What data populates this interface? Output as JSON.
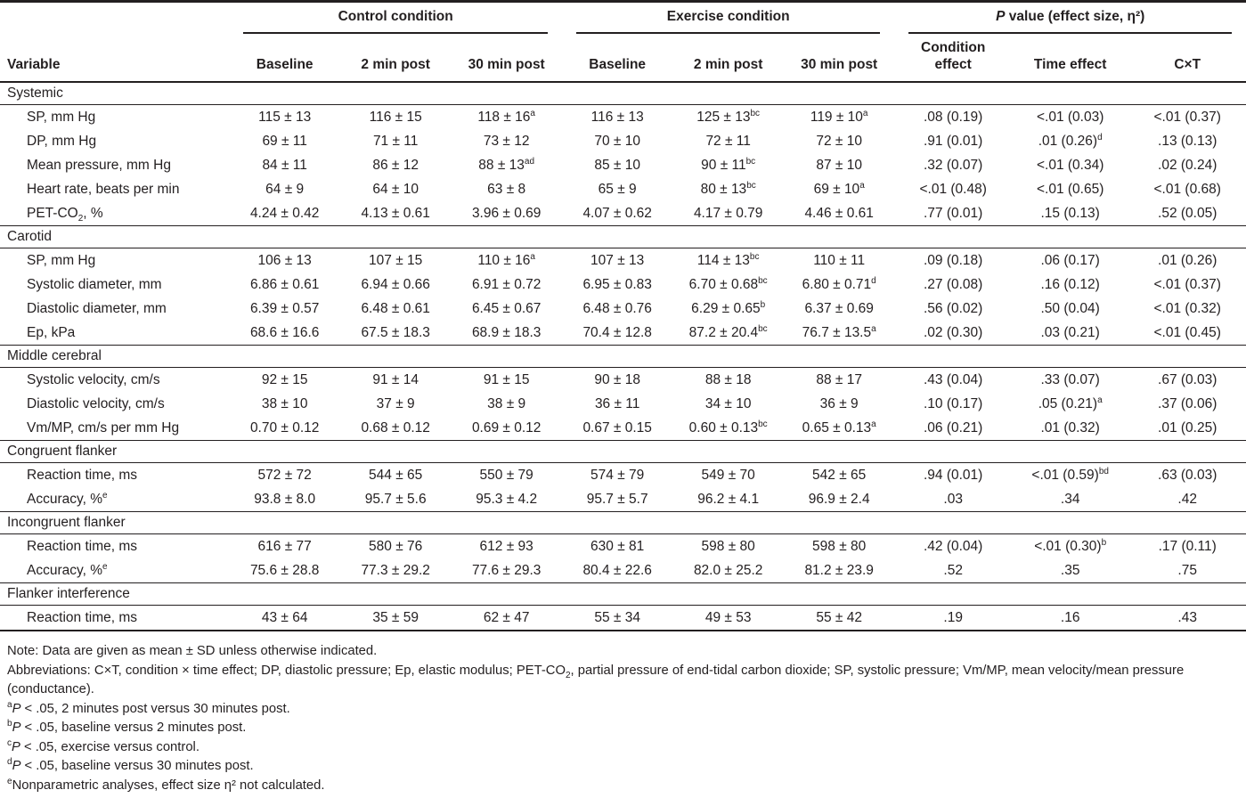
{
  "table": {
    "col_groups": [
      {
        "label": "Control condition"
      },
      {
        "label": "Exercise condition"
      },
      {
        "label": "*P* value (effect size, η²)"
      }
    ],
    "columns": [
      "Variable",
      "Baseline",
      "2 min post",
      "30 min post",
      "Baseline",
      "2 min post",
      "30 min post",
      "Condition\neffect",
      "Time effect",
      "C×T"
    ],
    "sections": [
      {
        "label": "Systemic",
        "rows": [
          {
            "label": "SP, mm Hg",
            "cells": [
              "115 ± 13",
              "116 ± 15",
              "118 ± 16^a",
              "116 ± 13",
              "125 ± 13^bc",
              "119 ± 10^a",
              ".08 (0.19)",
              "<.01 (0.03)",
              "<.01 (0.37)"
            ]
          },
          {
            "label": "DP, mm Hg",
            "cells": [
              "69 ± 11",
              "71 ± 11",
              "73 ± 12",
              "70 ± 10",
              "72 ± 11",
              "72 ± 10",
              ".91 (0.01)",
              ".01 (0.26)^d",
              ".13 (0.13)"
            ]
          },
          {
            "label": "Mean pressure, mm Hg",
            "cells": [
              "84 ± 11",
              "86 ± 12",
              "88 ± 13^ad",
              "85 ± 10",
              "90 ± 11^bc",
              "87 ± 10",
              ".32 (0.07)",
              "<.01 (0.34)",
              ".02 (0.24)"
            ]
          },
          {
            "label": "Heart rate, beats per min",
            "cells": [
              "64 ± 9",
              "64 ± 10",
              "63 ± 8",
              "65 ± 9",
              "80 ± 13^bc",
              "69 ± 10^a",
              "<.01 (0.48)",
              "<.01 (0.65)",
              "<.01 (0.68)"
            ]
          },
          {
            "label": "PET-CO~2~, %",
            "cells": [
              "4.24 ± 0.42",
              "4.13 ± 0.61",
              "3.96 ± 0.69",
              "4.07 ± 0.62",
              "4.17 ± 0.79",
              "4.46 ± 0.61",
              ".77 (0.01)",
              ".15 (0.13)",
              ".52 (0.05)"
            ]
          }
        ]
      },
      {
        "label": "Carotid",
        "rows": [
          {
            "label": "SP, mm Hg",
            "cells": [
              "106 ± 13",
              "107 ± 15",
              "110 ± 16^a",
              "107 ± 13",
              "114 ± 13^bc",
              "110 ± 11",
              ".09 (0.18)",
              ".06 (0.17)",
              ".01 (0.26)"
            ]
          },
          {
            "label": "Systolic diameter, mm",
            "cells": [
              "6.86 ± 0.61",
              "6.94 ± 0.66",
              "6.91 ± 0.72",
              "6.95 ± 0.83",
              "6.70 ± 0.68^bc",
              "6.80 ± 0.71^d",
              ".27 (0.08)",
              ".16 (0.12)",
              "<.01 (0.37)"
            ]
          },
          {
            "label": "Diastolic diameter, mm",
            "cells": [
              "6.39 ± 0.57",
              "6.48 ± 0.61",
              "6.45 ± 0.67",
              "6.48 ± 0.76",
              "6.29 ± 0.65^b",
              "6.37 ± 0.69",
              ".56 (0.02)",
              ".50 (0.04)",
              "<.01 (0.32)"
            ]
          },
          {
            "label": "Ep, kPa",
            "cells": [
              "68.6 ± 16.6",
              "67.5 ± 18.3",
              "68.9 ± 18.3",
              "70.4 ± 12.8",
              "87.2 ± 20.4^bc",
              "76.7 ± 13.5^a",
              ".02 (0.30)",
              ".03 (0.21)",
              "<.01 (0.45)"
            ]
          }
        ]
      },
      {
        "label": "Middle cerebral",
        "rows": [
          {
            "label": "Systolic velocity, cm/s",
            "cells": [
              "92 ± 15",
              "91 ± 14",
              "91 ± 15",
              "90 ± 18",
              "88 ± 18",
              "88 ± 17",
              ".43 (0.04)",
              ".33 (0.07)",
              ".67 (0.03)"
            ]
          },
          {
            "label": "Diastolic velocity, cm/s",
            "cells": [
              "38 ± 10",
              "37 ± 9",
              "38 ± 9",
              "36 ± 11",
              "34 ± 10",
              "36 ± 9",
              ".10 (0.17)",
              ".05 (0.21)^a",
              ".37 (0.06)"
            ]
          },
          {
            "label": "Vm/MP, cm/s per mm Hg",
            "cells": [
              "0.70 ± 0.12",
              "0.68 ± 0.12",
              "0.69 ± 0.12",
              "0.67 ± 0.15",
              "0.60 ± 0.13^bc",
              "0.65 ± 0.13^a",
              ".06 (0.21)",
              ".01 (0.32)",
              ".01 (0.25)"
            ]
          }
        ]
      },
      {
        "label": "Congruent flanker",
        "rows": [
          {
            "label": "Reaction time, ms",
            "cells": [
              "572 ± 72",
              "544 ± 65",
              "550 ± 79",
              "574 ± 79",
              "549 ± 70",
              "542 ± 65",
              ".94 (0.01)",
              "<.01 (0.59)^bd",
              ".63 (0.03)"
            ]
          },
          {
            "label": "Accuracy, %^e",
            "cells": [
              "93.8 ± 8.0",
              "95.7 ± 5.6",
              "95.3 ± 4.2",
              "95.7 ± 5.7",
              "96.2 ± 4.1",
              "96.9 ± 2.4",
              ".03",
              ".34",
              ".42"
            ]
          }
        ]
      },
      {
        "label": "Incongruent flanker",
        "rows": [
          {
            "label": "Reaction time, ms",
            "cells": [
              "616 ± 77",
              "580 ± 76",
              "612 ± 93",
              "630 ± 81",
              "598 ± 80",
              "598 ± 80",
              ".42 (0.04)",
              "<.01 (0.30)^b",
              ".17 (0.11)"
            ]
          },
          {
            "label": "Accuracy, %^e",
            "cells": [
              "75.6 ± 28.8",
              "77.3 ± 29.2",
              "77.6 ± 29.3",
              "80.4 ± 22.6",
              "82.0 ± 25.2",
              "81.2 ± 23.9",
              ".52",
              ".35",
              ".75"
            ]
          }
        ]
      },
      {
        "label": "Flanker interference",
        "rows": [
          {
            "label": "Reaction time, ms",
            "cells": [
              "43 ± 64",
              "35 ± 59",
              "62 ± 47",
              "55 ± 34",
              "49 ± 53",
              "55 ± 42",
              ".19",
              ".16",
              ".43"
            ]
          }
        ]
      }
    ]
  },
  "footnotes": [
    "Note: Data are given as mean ± SD unless otherwise indicated.",
    "Abbreviations: C×T, condition × time effect; DP, diastolic pressure; Ep, elastic modulus; PET-CO~2~, partial pressure of end-tidal carbon dioxide; SP, systolic pressure; Vm/MP, mean velocity/mean pressure (conductance).",
    "^a*P* < .05, 2 minutes post versus 30 minutes post.",
    "^b*P* < .05, baseline versus 2 minutes post.",
    "^c*P* < .05, exercise versus control.",
    "^d*P* < .05, baseline versus 30 minutes post.",
    "^eNonparametric analyses, effect size η² not calculated."
  ]
}
